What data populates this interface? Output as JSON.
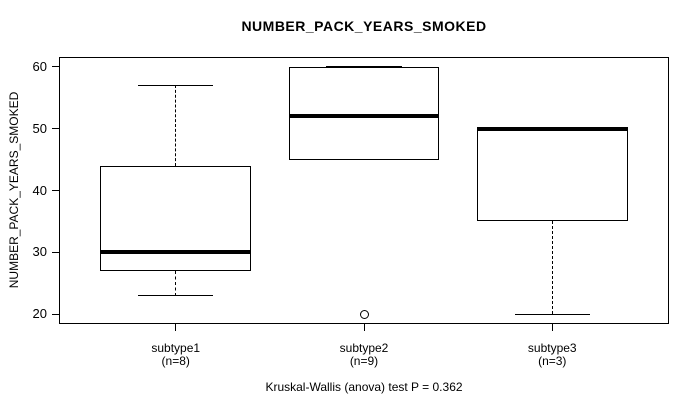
{
  "chart_data": {
    "type": "boxplot",
    "title": "NUMBER_PACK_YEARS_SMOKED",
    "ylabel": "NUMBER_PACK_YEARS_SMOKED",
    "xlabel": "",
    "annotation": "Kruskal-Wallis (anova) test P = 0.362",
    "categories": [
      "subtype1",
      "subtype2",
      "subtype3"
    ],
    "groups": [
      {
        "label": "subtype1",
        "sublabel": "(n=8)",
        "n": 8,
        "min": 23,
        "q1": 27,
        "median": 30,
        "q3": 44,
        "max": 57,
        "outliers": []
      },
      {
        "label": "subtype2",
        "sublabel": "(n=9)",
        "n": 9,
        "min": 45,
        "q1": 45,
        "median": 52,
        "q3": 60,
        "max": 60,
        "outliers": [
          20
        ]
      },
      {
        "label": "subtype3",
        "sublabel": "(n=3)",
        "n": 3,
        "min": 20,
        "q1": 35,
        "median": 50,
        "q3": 50,
        "max": 50,
        "outliers": []
      }
    ],
    "y_ticks": [
      20,
      30,
      40,
      50,
      60
    ],
    "ylim": [
      18.4,
      61.6
    ],
    "xlim": [
      0.38,
      3.62
    ],
    "positions": [
      1,
      2,
      3
    ],
    "box_width": 0.8,
    "cap_width": 0.4,
    "grid": false,
    "legend": "none",
    "colors": {
      "line": "#000000",
      "median": "#000000",
      "box_fill": "#ffffff",
      "background": "#ffffff"
    }
  }
}
